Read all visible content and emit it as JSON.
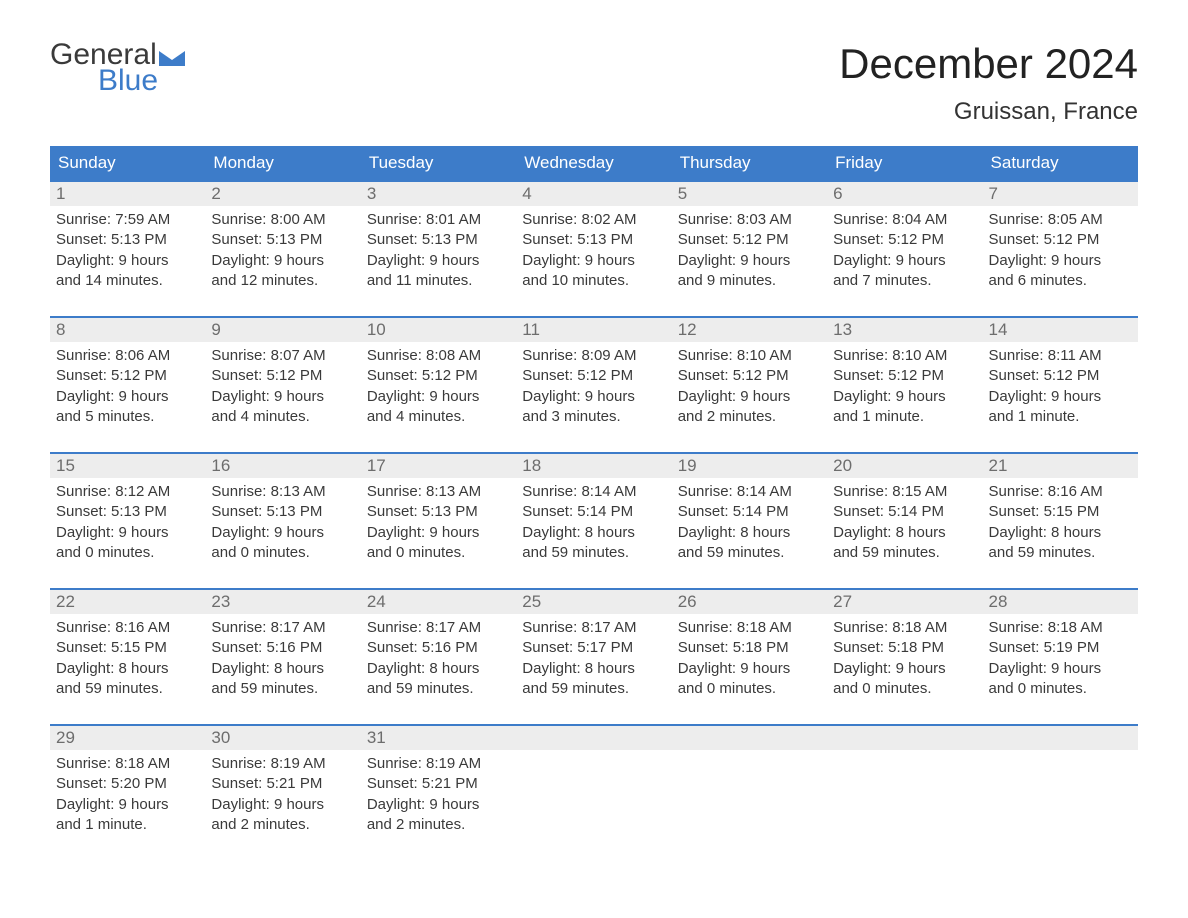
{
  "logo": {
    "word1": "General",
    "word2": "Blue",
    "flag_color": "#3d7cc9"
  },
  "title": "December 2024",
  "location": "Gruissan, France",
  "colors": {
    "header_bg": "#3d7cc9",
    "header_text": "#ffffff",
    "daynum_bg": "#ededed",
    "daynum_text": "#6d6d6d",
    "week_border": "#3d7cc9",
    "body_text": "#3a3a3a",
    "background": "#ffffff"
  },
  "day_headers": [
    "Sunday",
    "Monday",
    "Tuesday",
    "Wednesday",
    "Thursday",
    "Friday",
    "Saturday"
  ],
  "weeks": [
    [
      {
        "n": "1",
        "sunrise": "Sunrise: 7:59 AM",
        "sunset": "Sunset: 5:13 PM",
        "d1": "Daylight: 9 hours",
        "d2": "and 14 minutes."
      },
      {
        "n": "2",
        "sunrise": "Sunrise: 8:00 AM",
        "sunset": "Sunset: 5:13 PM",
        "d1": "Daylight: 9 hours",
        "d2": "and 12 minutes."
      },
      {
        "n": "3",
        "sunrise": "Sunrise: 8:01 AM",
        "sunset": "Sunset: 5:13 PM",
        "d1": "Daylight: 9 hours",
        "d2": "and 11 minutes."
      },
      {
        "n": "4",
        "sunrise": "Sunrise: 8:02 AM",
        "sunset": "Sunset: 5:13 PM",
        "d1": "Daylight: 9 hours",
        "d2": "and 10 minutes."
      },
      {
        "n": "5",
        "sunrise": "Sunrise: 8:03 AM",
        "sunset": "Sunset: 5:12 PM",
        "d1": "Daylight: 9 hours",
        "d2": "and 9 minutes."
      },
      {
        "n": "6",
        "sunrise": "Sunrise: 8:04 AM",
        "sunset": "Sunset: 5:12 PM",
        "d1": "Daylight: 9 hours",
        "d2": "and 7 minutes."
      },
      {
        "n": "7",
        "sunrise": "Sunrise: 8:05 AM",
        "sunset": "Sunset: 5:12 PM",
        "d1": "Daylight: 9 hours",
        "d2": "and 6 minutes."
      }
    ],
    [
      {
        "n": "8",
        "sunrise": "Sunrise: 8:06 AM",
        "sunset": "Sunset: 5:12 PM",
        "d1": "Daylight: 9 hours",
        "d2": "and 5 minutes."
      },
      {
        "n": "9",
        "sunrise": "Sunrise: 8:07 AM",
        "sunset": "Sunset: 5:12 PM",
        "d1": "Daylight: 9 hours",
        "d2": "and 4 minutes."
      },
      {
        "n": "10",
        "sunrise": "Sunrise: 8:08 AM",
        "sunset": "Sunset: 5:12 PM",
        "d1": "Daylight: 9 hours",
        "d2": "and 4 minutes."
      },
      {
        "n": "11",
        "sunrise": "Sunrise: 8:09 AM",
        "sunset": "Sunset: 5:12 PM",
        "d1": "Daylight: 9 hours",
        "d2": "and 3 minutes."
      },
      {
        "n": "12",
        "sunrise": "Sunrise: 8:10 AM",
        "sunset": "Sunset: 5:12 PM",
        "d1": "Daylight: 9 hours",
        "d2": "and 2 minutes."
      },
      {
        "n": "13",
        "sunrise": "Sunrise: 8:10 AM",
        "sunset": "Sunset: 5:12 PM",
        "d1": "Daylight: 9 hours",
        "d2": "and 1 minute."
      },
      {
        "n": "14",
        "sunrise": "Sunrise: 8:11 AM",
        "sunset": "Sunset: 5:12 PM",
        "d1": "Daylight: 9 hours",
        "d2": "and 1 minute."
      }
    ],
    [
      {
        "n": "15",
        "sunrise": "Sunrise: 8:12 AM",
        "sunset": "Sunset: 5:13 PM",
        "d1": "Daylight: 9 hours",
        "d2": "and 0 minutes."
      },
      {
        "n": "16",
        "sunrise": "Sunrise: 8:13 AM",
        "sunset": "Sunset: 5:13 PM",
        "d1": "Daylight: 9 hours",
        "d2": "and 0 minutes."
      },
      {
        "n": "17",
        "sunrise": "Sunrise: 8:13 AM",
        "sunset": "Sunset: 5:13 PM",
        "d1": "Daylight: 9 hours",
        "d2": "and 0 minutes."
      },
      {
        "n": "18",
        "sunrise": "Sunrise: 8:14 AM",
        "sunset": "Sunset: 5:14 PM",
        "d1": "Daylight: 8 hours",
        "d2": "and 59 minutes."
      },
      {
        "n": "19",
        "sunrise": "Sunrise: 8:14 AM",
        "sunset": "Sunset: 5:14 PM",
        "d1": "Daylight: 8 hours",
        "d2": "and 59 minutes."
      },
      {
        "n": "20",
        "sunrise": "Sunrise: 8:15 AM",
        "sunset": "Sunset: 5:14 PM",
        "d1": "Daylight: 8 hours",
        "d2": "and 59 minutes."
      },
      {
        "n": "21",
        "sunrise": "Sunrise: 8:16 AM",
        "sunset": "Sunset: 5:15 PM",
        "d1": "Daylight: 8 hours",
        "d2": "and 59 minutes."
      }
    ],
    [
      {
        "n": "22",
        "sunrise": "Sunrise: 8:16 AM",
        "sunset": "Sunset: 5:15 PM",
        "d1": "Daylight: 8 hours",
        "d2": "and 59 minutes."
      },
      {
        "n": "23",
        "sunrise": "Sunrise: 8:17 AM",
        "sunset": "Sunset: 5:16 PM",
        "d1": "Daylight: 8 hours",
        "d2": "and 59 minutes."
      },
      {
        "n": "24",
        "sunrise": "Sunrise: 8:17 AM",
        "sunset": "Sunset: 5:16 PM",
        "d1": "Daylight: 8 hours",
        "d2": "and 59 minutes."
      },
      {
        "n": "25",
        "sunrise": "Sunrise: 8:17 AM",
        "sunset": "Sunset: 5:17 PM",
        "d1": "Daylight: 8 hours",
        "d2": "and 59 minutes."
      },
      {
        "n": "26",
        "sunrise": "Sunrise: 8:18 AM",
        "sunset": "Sunset: 5:18 PM",
        "d1": "Daylight: 9 hours",
        "d2": "and 0 minutes."
      },
      {
        "n": "27",
        "sunrise": "Sunrise: 8:18 AM",
        "sunset": "Sunset: 5:18 PM",
        "d1": "Daylight: 9 hours",
        "d2": "and 0 minutes."
      },
      {
        "n": "28",
        "sunrise": "Sunrise: 8:18 AM",
        "sunset": "Sunset: 5:19 PM",
        "d1": "Daylight: 9 hours",
        "d2": "and 0 minutes."
      }
    ],
    [
      {
        "n": "29",
        "sunrise": "Sunrise: 8:18 AM",
        "sunset": "Sunset: 5:20 PM",
        "d1": "Daylight: 9 hours",
        "d2": "and 1 minute."
      },
      {
        "n": "30",
        "sunrise": "Sunrise: 8:19 AM",
        "sunset": "Sunset: 5:21 PM",
        "d1": "Daylight: 9 hours",
        "d2": "and 2 minutes."
      },
      {
        "n": "31",
        "sunrise": "Sunrise: 8:19 AM",
        "sunset": "Sunset: 5:21 PM",
        "d1": "Daylight: 9 hours",
        "d2": "and 2 minutes."
      },
      {
        "n": "",
        "sunrise": "",
        "sunset": "",
        "d1": "",
        "d2": ""
      },
      {
        "n": "",
        "sunrise": "",
        "sunset": "",
        "d1": "",
        "d2": ""
      },
      {
        "n": "",
        "sunrise": "",
        "sunset": "",
        "d1": "",
        "d2": ""
      },
      {
        "n": "",
        "sunrise": "",
        "sunset": "",
        "d1": "",
        "d2": ""
      }
    ]
  ]
}
